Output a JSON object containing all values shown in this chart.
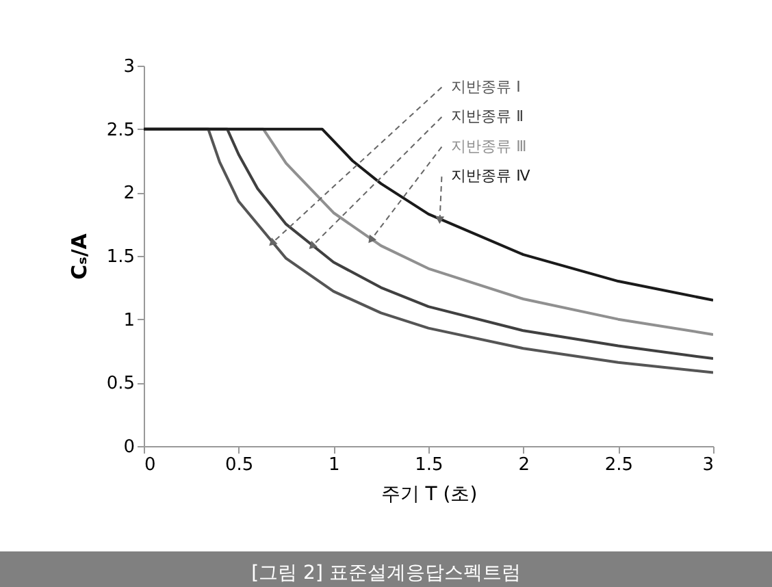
{
  "chart_data": {
    "type": "line",
    "title": "[그림 2] 표준설계응답스펙트럼",
    "xlabel": "주기 T (초)",
    "ylabel": "Cₛ/A",
    "xlim": [
      0,
      3
    ],
    "xticks": [
      0,
      0.5,
      1,
      1.5,
      2,
      2.5,
      3
    ],
    "ylim": [
      0,
      3
    ],
    "yticks": [
      0,
      0.5,
      1,
      1.5,
      2,
      2.5,
      3
    ],
    "grid": false,
    "legend": false,
    "marker": "none",
    "line_style": "solid",
    "series": [
      {
        "name": "지반종류 Ⅰ",
        "color": "#555555",
        "x": [
          0,
          0.34,
          0.4,
          0.5,
          0.75,
          1,
          1.25,
          1.5,
          2,
          2.5,
          3
        ],
        "values": [
          2.5,
          2.5,
          2.24,
          1.93,
          1.48,
          1.22,
          1.05,
          0.93,
          0.77,
          0.66,
          0.58
        ]
      },
      {
        "name": "지반종류 Ⅱ",
        "color": "#404040",
        "x": [
          0,
          0.44,
          0.5,
          0.6,
          0.75,
          1,
          1.25,
          1.5,
          2,
          2.5,
          3
        ],
        "values": [
          2.5,
          2.5,
          2.3,
          2.03,
          1.75,
          1.45,
          1.25,
          1.1,
          0.91,
          0.79,
          0.69
        ]
      },
      {
        "name": "지반종류 Ⅲ",
        "color": "#909090",
        "x": [
          0,
          0.63,
          0.75,
          1,
          1.25,
          1.5,
          2,
          2.5,
          3
        ],
        "values": [
          2.5,
          2.5,
          2.23,
          1.84,
          1.58,
          1.4,
          1.16,
          1.0,
          0.88
        ]
      },
      {
        "name": "지반종류 Ⅳ",
        "color": "#1a1a1a",
        "x": [
          0,
          0.94,
          1.1,
          1.25,
          1.5,
          2,
          2.5,
          3
        ],
        "values": [
          2.5,
          2.5,
          2.25,
          2.07,
          1.83,
          1.51,
          1.3,
          1.15
        ]
      }
    ]
  }
}
